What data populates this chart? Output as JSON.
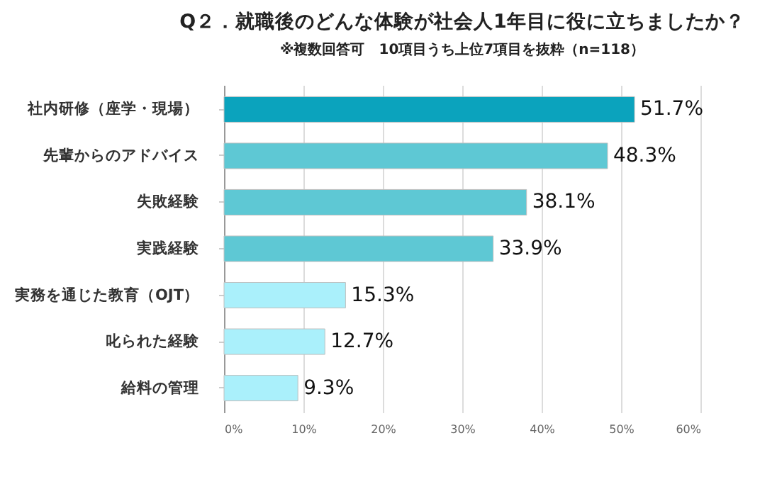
{
  "chart_data": {
    "type": "bar",
    "orientation": "horizontal",
    "title": "Q２．就職後のどんな体験が社会人1年目に役に立ちましたか？",
    "subtitle": "※複数回答可　10項目うち上位7項目を抜粋（n=118）",
    "categories": [
      "社内研修（座学・現場）",
      "先輩からのアドバイス",
      "失敗経験",
      "実践経験",
      "実務を通じた教育（OJT）",
      "叱られた経験",
      "給料の管理"
    ],
    "values": [
      51.7,
      48.3,
      38.1,
      33.9,
      15.3,
      12.7,
      9.3
    ],
    "colors": [
      "#0ba3bd",
      "#5ec8d4",
      "#5ec8d4",
      "#5ec8d4",
      "#aaf0fb",
      "#aaf0fb",
      "#aaf0fb"
    ],
    "value_labels": [
      "51.7%",
      "48.3%",
      "38.1%",
      "33.9%",
      "15.3%",
      "12.7%",
      "9.3%"
    ],
    "xlim": [
      0,
      60
    ],
    "xticks": [
      {
        "value": 0,
        "label": "0%"
      },
      {
        "value": 10,
        "label": "10%"
      },
      {
        "value": 20,
        "label": "20%"
      },
      {
        "value": 30,
        "label": "30%"
      },
      {
        "value": 40,
        "label": "40%"
      },
      {
        "value": 50,
        "label": "50%"
      },
      {
        "value": 60,
        "label": "60%"
      }
    ],
    "grid": "x"
  }
}
